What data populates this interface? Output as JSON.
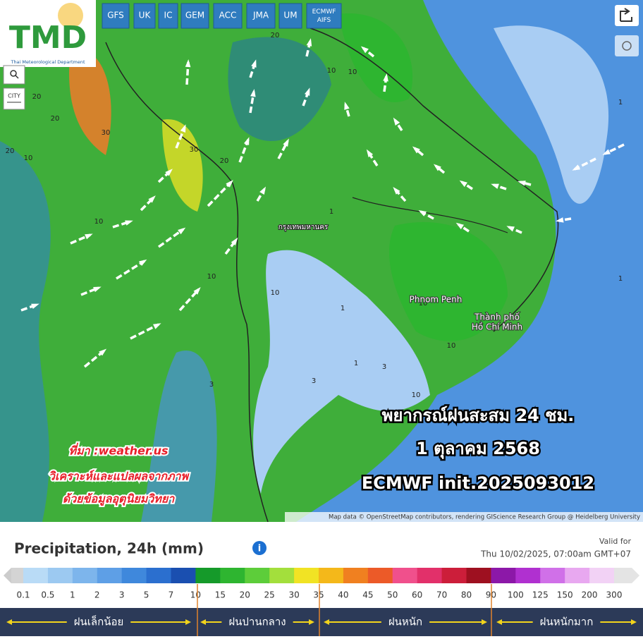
{
  "logo": {
    "title": "TMD",
    "subtitle": "Thai Meteorological Department"
  },
  "model_buttons": [
    "GFS",
    "UK",
    "IC",
    "GEM",
    "ACC",
    "JMA",
    "UM",
    "ECMWF AIFS"
  ],
  "map_controls": {
    "city": "CITY"
  },
  "map_labels": {
    "bangkok": "กรุงเทพมหานคร",
    "phnom_penh": "Phnom Penh",
    "hcm_line1": "Thành phố",
    "hcm_line2": "Hồ Chí Minh"
  },
  "map_values": [
    20,
    20,
    30,
    20,
    10,
    10,
    10,
    20,
    30,
    20,
    10,
    10,
    10,
    10,
    1,
    1,
    3,
    1,
    3,
    1,
    10,
    10,
    3,
    1
  ],
  "overlay": {
    "title_lines": [
      "พยากรณ์ฝนสะสม 24 ชม.",
      "1 ตุลาคม 2568",
      "ECMWF init.2025093012"
    ],
    "source_lines": [
      "ที่มา :weather.us",
      "วิเคราะห์และแปลผลจากภาพ",
      "ด้วยข้อมูลอุตุนิยมวิทยา"
    ]
  },
  "attribution": "Map data © OpenStreetMap contributors, rendering GIScience Research Group @ Heidelberg University",
  "legend": {
    "title": "Precipitation, 24h (mm)",
    "valid_label": "Valid for",
    "valid_time": "Thu 10/02/2025, 07:00am GMT+07",
    "levels": [
      0.1,
      0.5,
      1,
      2,
      3,
      5,
      7,
      10,
      15,
      20,
      25,
      30,
      35,
      40,
      45,
      50,
      60,
      70,
      80,
      90,
      100,
      125,
      150,
      200,
      300
    ],
    "colors": [
      "#b9dbf6",
      "#9cc9f1",
      "#7db5ec",
      "#5e9fe6",
      "#3f88dc",
      "#2b6fcf",
      "#1a4fb0",
      "#159a2a",
      "#2eb530",
      "#5dcd3a",
      "#a3df3c",
      "#f1e324",
      "#f4b81a",
      "#f08020",
      "#ec5a28",
      "#f0508c",
      "#e2306a",
      "#cc1e3a",
      "#9e1020",
      "#8c18a8",
      "#b030d0",
      "#d070e8",
      "#e8a8f0",
      "#f2d2f5"
    ],
    "categories": [
      "ฝนเล็กน้อย",
      "ฝนปานกลาง",
      "ฝนหนัก",
      "ฝนหนักมาก"
    ]
  }
}
